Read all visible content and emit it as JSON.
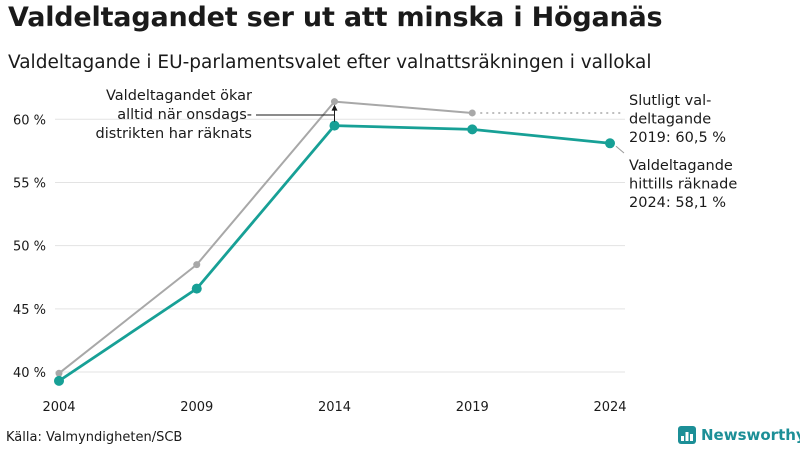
{
  "title": "Valdeltagandet ser ut att minska i Höganäs",
  "subtitle": "Valdeltagande i EU-parlamentsvalet efter valnattsräkningen i vallokal",
  "source": "Källa: Valmyndigheten/SCB",
  "brand": {
    "name": "Newsworthy",
    "icon": "newsworthy-bar-chart-icon"
  },
  "colors": {
    "current": "#17a096",
    "final": "#a8a8a8",
    "grid": "#e3e3e3",
    "brand": "#1c8f97"
  },
  "chart_data": {
    "type": "line",
    "x": [
      2004,
      2009,
      2014,
      2019,
      2024
    ],
    "ylim": [
      38.5,
      62
    ],
    "y_ticks": [
      40,
      45,
      50,
      55,
      60
    ],
    "y_tick_labels": [
      "40 %",
      "45 %",
      "50 %",
      "55 %",
      "60 %"
    ],
    "x_tick_labels": [
      "2004",
      "2009",
      "2014",
      "2019",
      "2024"
    ],
    "grid": true,
    "series": [
      {
        "key": "final",
        "values": [
          39.9,
          48.5,
          61.4,
          60.5,
          null
        ]
      },
      {
        "key": "current",
        "values": [
          39.3,
          46.6,
          59.5,
          59.2,
          58.1
        ]
      }
    ],
    "annotations": {
      "gap_note": [
        "Valdeltagandet ökar",
        "alltid när onsdags-",
        "distrikten har räknats"
      ],
      "final_label": [
        "Slutligt val-",
        "deltagande",
        "2019: 60,5 %"
      ],
      "current_label": [
        "Valdeltagande",
        "hittills räknade",
        "2024: 58,1 %"
      ]
    }
  }
}
